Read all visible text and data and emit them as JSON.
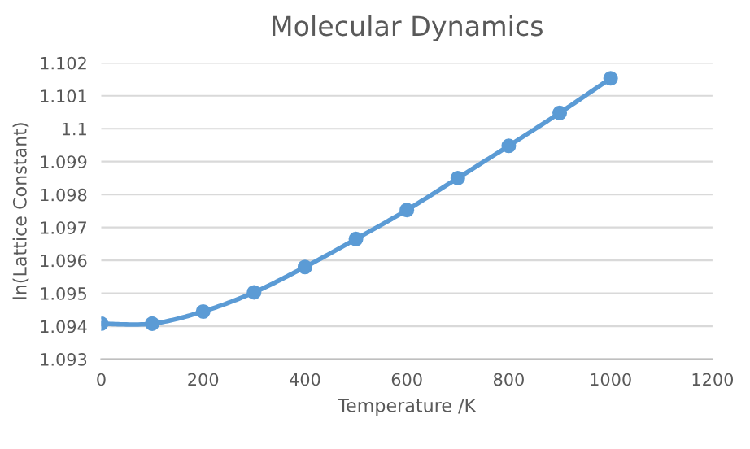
{
  "chart_data": {
    "type": "line",
    "title": "Molecular Dynamics",
    "xlabel": "Temperature /K",
    "ylabel": "ln(Lattice Constant)",
    "x": [
      0,
      100,
      200,
      300,
      400,
      500,
      600,
      700,
      800,
      900,
      1000
    ],
    "series": [
      {
        "color": "#5b9bd5",
        "values": [
          1.09408,
          1.09408,
          1.09445,
          1.09503,
          1.0958,
          1.09665,
          1.09753,
          1.0985,
          1.09948,
          1.10048,
          1.10153
        ]
      }
    ],
    "xlim": [
      0,
      1200
    ],
    "xticks": [
      0,
      200,
      400,
      600,
      800,
      1000,
      1200
    ],
    "ylim": [
      1.093,
      1.102
    ],
    "yticks": [
      1.093,
      1.094,
      1.095,
      1.096,
      1.097,
      1.098,
      1.099,
      1.1,
      1.101,
      1.102
    ],
    "grid": "y",
    "marker": "circle",
    "line_style": "solid",
    "legend": false
  }
}
